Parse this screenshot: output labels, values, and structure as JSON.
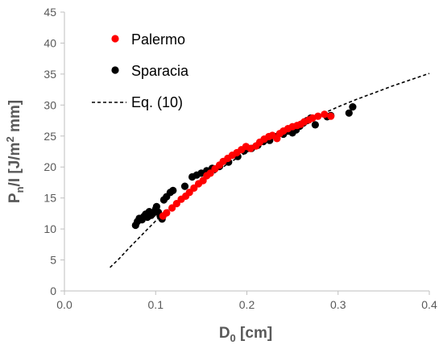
{
  "chart_data": {
    "type": "scatter",
    "xlabel": {
      "main": "D",
      "sub": "0",
      "rest": " [cm]"
    },
    "ylabel": {
      "a": "P",
      "sub": "n",
      "b": "/I [J/m",
      "sup": "2",
      "c": " mm]"
    },
    "xlim": [
      0,
      0.4
    ],
    "ylim": [
      0,
      45
    ],
    "x_ticks": [
      "0.0",
      "0.1",
      "0.2",
      "0.3",
      "0.4"
    ],
    "y_ticks": [
      "0",
      "5",
      "10",
      "15",
      "20",
      "25",
      "30",
      "35",
      "40",
      "45"
    ],
    "grid": false,
    "legend_position": "top-left",
    "series": [
      {
        "name": "Palermo",
        "kind": "points",
        "color": "#ff0000",
        "points": [
          [
            0.108,
            12.1
          ],
          [
            0.112,
            12.6
          ],
          [
            0.118,
            13.4
          ],
          [
            0.123,
            14.1
          ],
          [
            0.128,
            14.8
          ],
          [
            0.133,
            15.3
          ],
          [
            0.137,
            15.9
          ],
          [
            0.142,
            16.6
          ],
          [
            0.147,
            17.3
          ],
          [
            0.152,
            17.8
          ],
          [
            0.156,
            18.6
          ],
          [
            0.16,
            19.0
          ],
          [
            0.165,
            19.7
          ],
          [
            0.17,
            20.3
          ],
          [
            0.174,
            20.9
          ],
          [
            0.179,
            21.4
          ],
          [
            0.184,
            21.9
          ],
          [
            0.189,
            22.3
          ],
          [
            0.194,
            22.8
          ],
          [
            0.199,
            23.3
          ],
          [
            0.204,
            23.0
          ],
          [
            0.21,
            23.4
          ],
          [
            0.214,
            24.0
          ],
          [
            0.219,
            24.5
          ],
          [
            0.224,
            24.9
          ],
          [
            0.228,
            25.1
          ],
          [
            0.233,
            24.6
          ],
          [
            0.236,
            25.4
          ],
          [
            0.24,
            25.8
          ],
          [
            0.245,
            26.2
          ],
          [
            0.25,
            26.5
          ],
          [
            0.255,
            26.7
          ],
          [
            0.259,
            26.9
          ],
          [
            0.263,
            27.3
          ],
          [
            0.268,
            27.6
          ],
          [
            0.272,
            27.9
          ],
          [
            0.278,
            28.2
          ],
          [
            0.285,
            28.5
          ],
          [
            0.292,
            28.2
          ]
        ]
      },
      {
        "name": "Sparacia",
        "kind": "points",
        "color": "#000000",
        "points": [
          [
            0.078,
            10.6
          ],
          [
            0.08,
            11.2
          ],
          [
            0.082,
            11.7
          ],
          [
            0.085,
            11.5
          ],
          [
            0.087,
            12.0
          ],
          [
            0.089,
            12.4
          ],
          [
            0.091,
            11.9
          ],
          [
            0.093,
            12.8
          ],
          [
            0.095,
            12.2
          ],
          [
            0.097,
            12.5
          ],
          [
            0.1,
            13.2
          ],
          [
            0.101,
            13.6
          ],
          [
            0.103,
            12.7
          ],
          [
            0.105,
            12.1
          ],
          [
            0.107,
            11.6
          ],
          [
            0.109,
            14.7
          ],
          [
            0.112,
            15.2
          ],
          [
            0.116,
            15.9
          ],
          [
            0.119,
            16.2
          ],
          [
            0.132,
            16.9
          ],
          [
            0.14,
            18.4
          ],
          [
            0.145,
            18.7
          ],
          [
            0.15,
            19.0
          ],
          [
            0.156,
            19.4
          ],
          [
            0.162,
            19.8
          ],
          [
            0.17,
            20.1
          ],
          [
            0.18,
            20.8
          ],
          [
            0.19,
            21.7
          ],
          [
            0.197,
            22.6
          ],
          [
            0.205,
            23.0
          ],
          [
            0.212,
            23.5
          ],
          [
            0.218,
            24.1
          ],
          [
            0.225,
            24.3
          ],
          [
            0.232,
            24.9
          ],
          [
            0.24,
            25.3
          ],
          [
            0.245,
            25.8
          ],
          [
            0.25,
            25.5
          ],
          [
            0.254,
            26.0
          ],
          [
            0.258,
            26.6
          ],
          [
            0.262,
            27.1
          ],
          [
            0.266,
            27.5
          ],
          [
            0.27,
            27.9
          ],
          [
            0.275,
            26.8
          ],
          [
            0.288,
            28.1
          ],
          [
            0.292,
            28.3
          ],
          [
            0.312,
            28.7
          ],
          [
            0.316,
            29.7
          ]
        ]
      },
      {
        "name": "Eq. (10)",
        "kind": "dashed-line",
        "color": "#000000",
        "points": [
          [
            0.05,
            3.8
          ],
          [
            0.06,
            5.2
          ],
          [
            0.07,
            6.8
          ],
          [
            0.08,
            8.3
          ],
          [
            0.09,
            9.8
          ],
          [
            0.1,
            11.3
          ],
          [
            0.12,
            14.0
          ],
          [
            0.14,
            16.4
          ],
          [
            0.16,
            18.6
          ],
          [
            0.18,
            20.6
          ],
          [
            0.2,
            22.4
          ],
          [
            0.22,
            24.1
          ],
          [
            0.24,
            25.6
          ],
          [
            0.26,
            27.0
          ],
          [
            0.28,
            28.4
          ],
          [
            0.3,
            29.7
          ],
          [
            0.32,
            30.9
          ],
          [
            0.34,
            32.0
          ],
          [
            0.36,
            33.1
          ],
          [
            0.38,
            34.1
          ],
          [
            0.4,
            35.1
          ]
        ]
      }
    ]
  }
}
